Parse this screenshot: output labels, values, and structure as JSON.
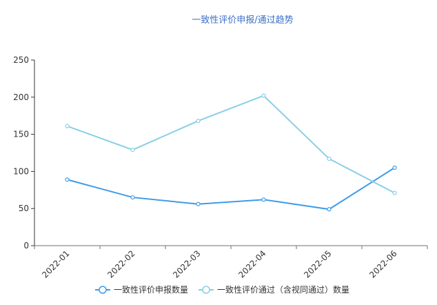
{
  "chart_data": {
    "type": "line",
    "title": "一致性评价申报/通过趋势",
    "categories": [
      "2022-01",
      "2022-02",
      "2022-03",
      "2022-04",
      "2022-05",
      "2022-06"
    ],
    "ylim": [
      0,
      250
    ],
    "yticks": [
      0,
      50,
      100,
      150,
      200,
      250
    ],
    "grid": false,
    "legend": "bottom-center",
    "series": [
      {
        "name": "一致性评价申报数量",
        "values": [
          89,
          65,
          56,
          62,
          49,
          105
        ],
        "color": "#3d9be9"
      },
      {
        "name": "一致性评价通过（含视同通过）数量",
        "values": [
          161,
          129,
          168,
          202,
          117,
          71
        ],
        "color": "#87cfe6"
      }
    ]
  }
}
